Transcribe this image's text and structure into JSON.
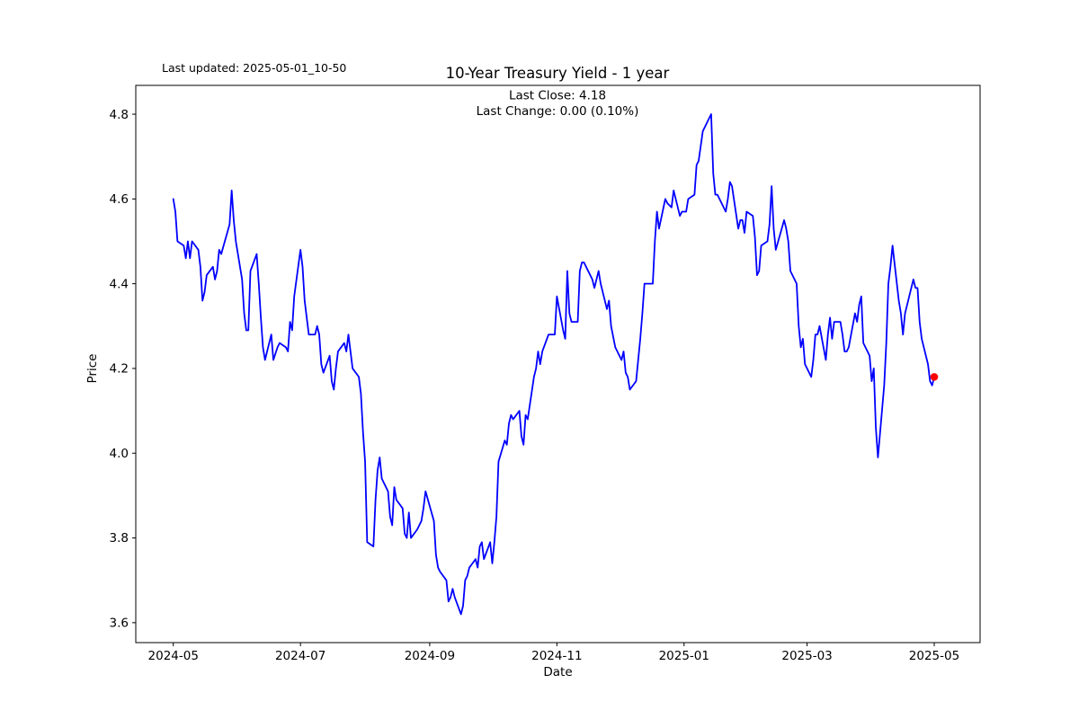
{
  "annotations": {
    "last_updated": "Last updated: 2025-05-01_10-50",
    "last_close_line": "Last Close: 4.18",
    "last_change_line": "Last Change: 0.00 (0.10%)"
  },
  "chart_data": {
    "type": "line",
    "title": "10-Year Treasury Yield - 1 year",
    "xlabel": "Date",
    "ylabel": "Price",
    "grid": false,
    "legend": "none",
    "line_color": "#0000ff",
    "last_point_marker_color": "#ff0000",
    "axis_color": "#000000",
    "last_close": 4.18,
    "last_change": "0.00 (0.10%)",
    "ylim": [
      3.553,
      4.868
    ],
    "xlim": [
      "2024-04-13",
      "2025-05-23"
    ],
    "y_ticks": [
      3.6,
      3.8,
      4.0,
      4.2,
      4.4,
      4.6,
      4.8
    ],
    "x_ticks": [
      {
        "date": "2024-05-01",
        "label": "2024-05"
      },
      {
        "date": "2024-07-01",
        "label": "2024-07"
      },
      {
        "date": "2024-09-01",
        "label": "2024-09"
      },
      {
        "date": "2024-11-01",
        "label": "2024-11"
      },
      {
        "date": "2025-01-01",
        "label": "2025-01"
      },
      {
        "date": "2025-03-01",
        "label": "2025-03"
      },
      {
        "date": "2025-05-01",
        "label": "2025-05"
      }
    ],
    "series": [
      {
        "name": "10-Year Treasury Yield",
        "dates": [
          "2024-05-01",
          "2024-05-02",
          "2024-05-03",
          "2024-05-06",
          "2024-05-07",
          "2024-05-08",
          "2024-05-09",
          "2024-05-10",
          "2024-05-13",
          "2024-05-14",
          "2024-05-15",
          "2024-05-16",
          "2024-05-17",
          "2024-05-20",
          "2024-05-21",
          "2024-05-22",
          "2024-05-23",
          "2024-05-24",
          "2024-05-28",
          "2024-05-29",
          "2024-05-30",
          "2024-05-31",
          "2024-06-03",
          "2024-06-04",
          "2024-06-05",
          "2024-06-06",
          "2024-06-07",
          "2024-06-10",
          "2024-06-11",
          "2024-06-12",
          "2024-06-13",
          "2024-06-14",
          "2024-06-17",
          "2024-06-18",
          "2024-06-20",
          "2024-06-21",
          "2024-06-24",
          "2024-06-25",
          "2024-06-26",
          "2024-06-27",
          "2024-06-28",
          "2024-07-01",
          "2024-07-02",
          "2024-07-03",
          "2024-07-05",
          "2024-07-08",
          "2024-07-09",
          "2024-07-10",
          "2024-07-11",
          "2024-07-12",
          "2024-07-15",
          "2024-07-16",
          "2024-07-17",
          "2024-07-18",
          "2024-07-19",
          "2024-07-22",
          "2024-07-23",
          "2024-07-24",
          "2024-07-25",
          "2024-07-26",
          "2024-07-29",
          "2024-07-30",
          "2024-07-31",
          "2024-08-01",
          "2024-08-02",
          "2024-08-05",
          "2024-08-06",
          "2024-08-07",
          "2024-08-08",
          "2024-08-09",
          "2024-08-12",
          "2024-08-13",
          "2024-08-14",
          "2024-08-15",
          "2024-08-16",
          "2024-08-19",
          "2024-08-20",
          "2024-08-21",
          "2024-08-22",
          "2024-08-23",
          "2024-08-26",
          "2024-08-27",
          "2024-08-28",
          "2024-08-29",
          "2024-08-30",
          "2024-09-03",
          "2024-09-04",
          "2024-09-05",
          "2024-09-06",
          "2024-09-09",
          "2024-09-10",
          "2024-09-11",
          "2024-09-12",
          "2024-09-13",
          "2024-09-16",
          "2024-09-17",
          "2024-09-18",
          "2024-09-19",
          "2024-09-20",
          "2024-09-23",
          "2024-09-24",
          "2024-09-25",
          "2024-09-26",
          "2024-09-27",
          "2024-09-30",
          "2024-10-01",
          "2024-10-02",
          "2024-10-03",
          "2024-10-04",
          "2024-10-07",
          "2024-10-08",
          "2024-10-09",
          "2024-10-10",
          "2024-10-11",
          "2024-10-14",
          "2024-10-15",
          "2024-10-16",
          "2024-10-17",
          "2024-10-18",
          "2024-10-21",
          "2024-10-22",
          "2024-10-23",
          "2024-10-24",
          "2024-10-25",
          "2024-10-28",
          "2024-10-29",
          "2024-10-30",
          "2024-10-31",
          "2024-11-01",
          "2024-11-04",
          "2024-11-05",
          "2024-11-06",
          "2024-11-07",
          "2024-11-08",
          "2024-11-11",
          "2024-11-12",
          "2024-11-13",
          "2024-11-14",
          "2024-11-15",
          "2024-11-18",
          "2024-11-19",
          "2024-11-20",
          "2024-11-21",
          "2024-11-22",
          "2024-11-25",
          "2024-11-26",
          "2024-11-27",
          "2024-11-29",
          "2024-12-02",
          "2024-12-03",
          "2024-12-04",
          "2024-12-05",
          "2024-12-06",
          "2024-12-09",
          "2024-12-10",
          "2024-12-11",
          "2024-12-12",
          "2024-12-13",
          "2024-12-16",
          "2024-12-17",
          "2024-12-18",
          "2024-12-19",
          "2024-12-20",
          "2024-12-23",
          "2024-12-24",
          "2024-12-26",
          "2024-12-27",
          "2024-12-30",
          "2024-12-31",
          "2025-01-02",
          "2025-01-03",
          "2025-01-06",
          "2025-01-07",
          "2025-01-08",
          "2025-01-10",
          "2025-01-13",
          "2025-01-14",
          "2025-01-15",
          "2025-01-16",
          "2025-01-17",
          "2025-01-21",
          "2025-01-22",
          "2025-01-23",
          "2025-01-24",
          "2025-01-27",
          "2025-01-28",
          "2025-01-29",
          "2025-01-30",
          "2025-01-31",
          "2025-02-03",
          "2025-02-04",
          "2025-02-05",
          "2025-02-06",
          "2025-02-07",
          "2025-02-10",
          "2025-02-11",
          "2025-02-12",
          "2025-02-13",
          "2025-02-14",
          "2025-02-18",
          "2025-02-19",
          "2025-02-20",
          "2025-02-21",
          "2025-02-24",
          "2025-02-25",
          "2025-02-26",
          "2025-02-27",
          "2025-02-28",
          "2025-03-03",
          "2025-03-04",
          "2025-03-05",
          "2025-03-06",
          "2025-03-07",
          "2025-03-10",
          "2025-03-11",
          "2025-03-12",
          "2025-03-13",
          "2025-03-14",
          "2025-03-17",
          "2025-03-18",
          "2025-03-19",
          "2025-03-20",
          "2025-03-21",
          "2025-03-24",
          "2025-03-25",
          "2025-03-26",
          "2025-03-27",
          "2025-03-28",
          "2025-03-31",
          "2025-04-01",
          "2025-04-02",
          "2025-04-03",
          "2025-04-04",
          "2025-04-07",
          "2025-04-08",
          "2025-04-09",
          "2025-04-10",
          "2025-04-11",
          "2025-04-14",
          "2025-04-15",
          "2025-04-16",
          "2025-04-17",
          "2025-04-21",
          "2025-04-22",
          "2025-04-23",
          "2025-04-24",
          "2025-04-25",
          "2025-04-28",
          "2025-04-29",
          "2025-04-30",
          "2025-05-01"
        ],
        "values": [
          4.6,
          4.57,
          4.5,
          4.49,
          4.46,
          4.5,
          4.46,
          4.5,
          4.48,
          4.44,
          4.36,
          4.38,
          4.42,
          4.44,
          4.41,
          4.43,
          4.48,
          4.47,
          4.54,
          4.62,
          4.55,
          4.5,
          4.41,
          4.33,
          4.29,
          4.29,
          4.43,
          4.47,
          4.4,
          4.32,
          4.25,
          4.22,
          4.28,
          4.22,
          4.25,
          4.26,
          4.25,
          4.24,
          4.31,
          4.29,
          4.37,
          4.48,
          4.44,
          4.36,
          4.28,
          4.28,
          4.3,
          4.28,
          4.21,
          4.19,
          4.23,
          4.17,
          4.15,
          4.2,
          4.24,
          4.26,
          4.24,
          4.28,
          4.24,
          4.2,
          4.18,
          4.14,
          4.05,
          3.98,
          3.79,
          3.78,
          3.89,
          3.96,
          3.99,
          3.94,
          3.91,
          3.85,
          3.83,
          3.92,
          3.89,
          3.87,
          3.81,
          3.8,
          3.86,
          3.8,
          3.82,
          3.83,
          3.84,
          3.87,
          3.91,
          3.84,
          3.76,
          3.73,
          3.72,
          3.7,
          3.65,
          3.66,
          3.68,
          3.66,
          3.62,
          3.64,
          3.7,
          3.71,
          3.73,
          3.75,
          3.73,
          3.78,
          3.79,
          3.75,
          3.79,
          3.74,
          3.79,
          3.85,
          3.98,
          4.03,
          4.02,
          4.07,
          4.09,
          4.08,
          4.1,
          4.04,
          4.02,
          4.09,
          4.08,
          4.18,
          4.2,
          4.24,
          4.21,
          4.24,
          4.28,
          4.28,
          4.28,
          4.28,
          4.37,
          4.29,
          4.27,
          4.43,
          4.33,
          4.31,
          4.31,
          4.43,
          4.45,
          4.45,
          4.44,
          4.41,
          4.39,
          4.41,
          4.43,
          4.4,
          4.34,
          4.36,
          4.3,
          4.25,
          4.22,
          4.24,
          4.19,
          4.18,
          4.15,
          4.17,
          4.22,
          4.27,
          4.33,
          4.4,
          4.4,
          4.4,
          4.5,
          4.57,
          4.53,
          4.6,
          4.59,
          4.58,
          4.62,
          4.56,
          4.57,
          4.57,
          4.6,
          4.61,
          4.68,
          4.69,
          4.76,
          4.79,
          4.8,
          4.66,
          4.61,
          4.61,
          4.57,
          4.6,
          4.64,
          4.63,
          4.53,
          4.55,
          4.55,
          4.52,
          4.57,
          4.56,
          4.51,
          4.42,
          4.43,
          4.49,
          4.5,
          4.54,
          4.63,
          4.53,
          4.48,
          4.55,
          4.53,
          4.5,
          4.43,
          4.4,
          4.3,
          4.25,
          4.27,
          4.21,
          4.18,
          4.22,
          4.28,
          4.28,
          4.3,
          4.22,
          4.28,
          4.32,
          4.27,
          4.31,
          4.31,
          4.28,
          4.24,
          4.24,
          4.25,
          4.33,
          4.31,
          4.35,
          4.37,
          4.26,
          4.23,
          4.17,
          4.2,
          4.06,
          3.99,
          4.16,
          4.26,
          4.4,
          4.44,
          4.49,
          4.36,
          4.33,
          4.28,
          4.33,
          4.41,
          4.39,
          4.39,
          4.31,
          4.27,
          4.21,
          4.17,
          4.16,
          4.18
        ]
      }
    ]
  }
}
